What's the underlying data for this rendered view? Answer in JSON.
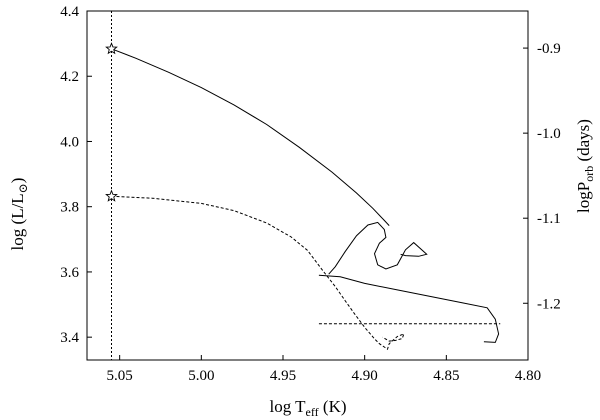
{
  "chart_data": {
    "type": "line",
    "title": "",
    "xlabel": {
      "base": "log T",
      "sub": "eff",
      "unit": " (K)"
    },
    "ylabel_left": {
      "prefix": "log (L/L",
      "sun": "⊙",
      "suffix": ")"
    },
    "ylabel_right": {
      "base": "logP",
      "sub": "orb",
      "unit": " (days)"
    },
    "xlim": [
      5.07,
      4.8
    ],
    "ylim_left": [
      3.33,
      4.4
    ],
    "ylim_right": [
      -1.2667,
      -0.8564
    ],
    "x_reversed": true,
    "x_ticks": [
      5.05,
      5.0,
      4.95,
      4.9,
      4.85,
      4.8
    ],
    "x_tick_labels": [
      "5.05",
      "5.00",
      "4.95",
      "4.90",
      "4.85",
      "4.80"
    ],
    "y_left_ticks": [
      3.4,
      3.6,
      3.8,
      4.0,
      4.2,
      4.4
    ],
    "y_left_tick_labels": [
      "3.4",
      "3.6",
      "3.8",
      "4.0",
      "4.2",
      "4.4"
    ],
    "y_right_ticks": [
      -0.9,
      -1.0,
      -1.1,
      -1.2
    ],
    "y_right_tick_labels": [
      "-0.9",
      "-1.0",
      "-1.1",
      "-1.2"
    ],
    "vertical_marker_x": 5.055,
    "horizontal_marker": {
      "x": [
        4.928,
        4.817
      ],
      "y": 3.441
    },
    "series": [
      {
        "style": "solid",
        "axis": "left",
        "points": [
          [
            5.055,
            4.284
          ],
          [
            5.04,
            4.255
          ],
          [
            5.02,
            4.212
          ],
          [
            5.0,
            4.165
          ],
          [
            4.98,
            4.112
          ],
          [
            4.96,
            4.052
          ],
          [
            4.94,
            3.982
          ],
          [
            4.92,
            3.906
          ],
          [
            4.905,
            3.842
          ],
          [
            4.895,
            3.795
          ],
          [
            4.888,
            3.758
          ],
          [
            4.885,
            3.742
          ]
        ]
      },
      {
        "style": "solid",
        "axis": "left",
        "points": [
          [
            4.922,
            3.593
          ],
          [
            4.918,
            3.616
          ],
          [
            4.912,
            3.662
          ],
          [
            4.905,
            3.711
          ],
          [
            4.898,
            3.744
          ],
          [
            4.892,
            3.752
          ],
          [
            4.888,
            3.73
          ],
          [
            4.887,
            3.706
          ],
          [
            4.891,
            3.688
          ],
          [
            4.894,
            3.656
          ],
          [
            4.892,
            3.622
          ],
          [
            4.887,
            3.609
          ],
          [
            4.88,
            3.622
          ],
          [
            4.875,
            3.668
          ],
          [
            4.87,
            3.69
          ],
          [
            4.862,
            3.654
          ],
          [
            4.867,
            3.648
          ],
          [
            4.875,
            3.65
          ],
          [
            4.878,
            3.654
          ]
        ]
      },
      {
        "style": "solid",
        "axis": "left",
        "points": [
          [
            4.928,
            3.59
          ],
          [
            4.915,
            3.585
          ],
          [
            4.9,
            3.565
          ],
          [
            4.88,
            3.545
          ],
          [
            4.86,
            3.525
          ],
          [
            4.84,
            3.505
          ],
          [
            4.825,
            3.49
          ],
          [
            4.82,
            3.455
          ],
          [
            4.818,
            3.41
          ],
          [
            4.82,
            3.384
          ],
          [
            4.827,
            3.386
          ]
        ]
      },
      {
        "style": "dashed",
        "axis": "left",
        "points": [
          [
            5.055,
            3.832
          ],
          [
            5.03,
            3.826
          ],
          [
            5.0,
            3.81
          ],
          [
            4.98,
            3.788
          ],
          [
            4.96,
            3.75
          ],
          [
            4.945,
            3.707
          ],
          [
            4.935,
            3.666
          ],
          [
            4.925,
            3.6
          ],
          [
            4.918,
            3.555
          ],
          [
            4.912,
            3.512
          ],
          [
            4.906,
            3.47
          ],
          [
            4.9,
            3.43
          ],
          [
            4.894,
            3.395
          ],
          [
            4.891,
            3.38
          ],
          [
            4.888,
            3.37
          ],
          [
            4.886,
            3.363
          ],
          [
            4.885,
            3.38
          ],
          [
            4.88,
            3.402
          ],
          [
            4.876,
            3.41
          ],
          [
            4.877,
            3.396
          ],
          [
            4.881,
            3.39
          ],
          [
            4.885,
            3.388
          ],
          [
            4.889,
            3.4
          ]
        ]
      }
    ],
    "star_markers": [
      {
        "x": 5.055,
        "y": 4.284
      },
      {
        "x": 5.055,
        "y": 3.832
      }
    ]
  }
}
